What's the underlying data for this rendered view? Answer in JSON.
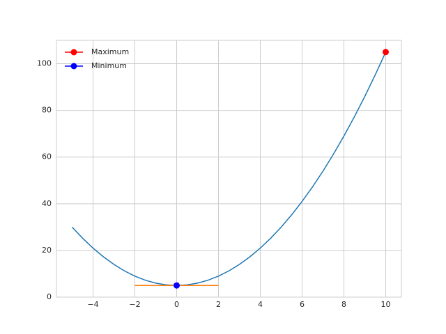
{
  "chart_data": {
    "type": "line",
    "series": [
      {
        "color": "#1f77b4",
        "x": [
          -5,
          -4.5,
          -4,
          -3.5,
          -3,
          -2.5,
          -2,
          -1.5,
          -1,
          -0.5,
          0,
          0.5,
          1,
          1.5,
          2,
          2.5,
          3,
          3.5,
          4,
          4.5,
          5,
          5.5,
          6,
          6.5,
          7,
          7.5,
          8,
          8.5,
          9,
          9.5,
          10
        ],
        "values": [
          30,
          25.25,
          21,
          17.25,
          14,
          11.25,
          9,
          7.25,
          6,
          5.25,
          5,
          5.25,
          6,
          7.25,
          9,
          11.25,
          14,
          17.25,
          21,
          25.25,
          30,
          35.25,
          41,
          47.25,
          54,
          61.25,
          69,
          77.25,
          86,
          95.25,
          105
        ]
      },
      {
        "color": "#ff7f0e",
        "x": [
          -2,
          2
        ],
        "values": [
          5,
          5
        ]
      },
      {
        "name": "Maximum",
        "color": "red",
        "marker": "o",
        "x": [
          10
        ],
        "values": [
          105
        ]
      },
      {
        "name": "Minimum",
        "color": "blue",
        "marker": "o",
        "x": [
          0
        ],
        "values": [
          5
        ]
      }
    ],
    "xlim": [
      -5.75,
      10.75
    ],
    "ylim": [
      0,
      110
    ],
    "xticks": [
      {
        "value": -4,
        "label": "−4"
      },
      {
        "value": -2,
        "label": "−2"
      },
      0,
      2,
      4,
      6,
      8,
      10
    ],
    "yticks": [
      0,
      20,
      40,
      60,
      80,
      100
    ],
    "grid": true,
    "legend": "upper left"
  }
}
